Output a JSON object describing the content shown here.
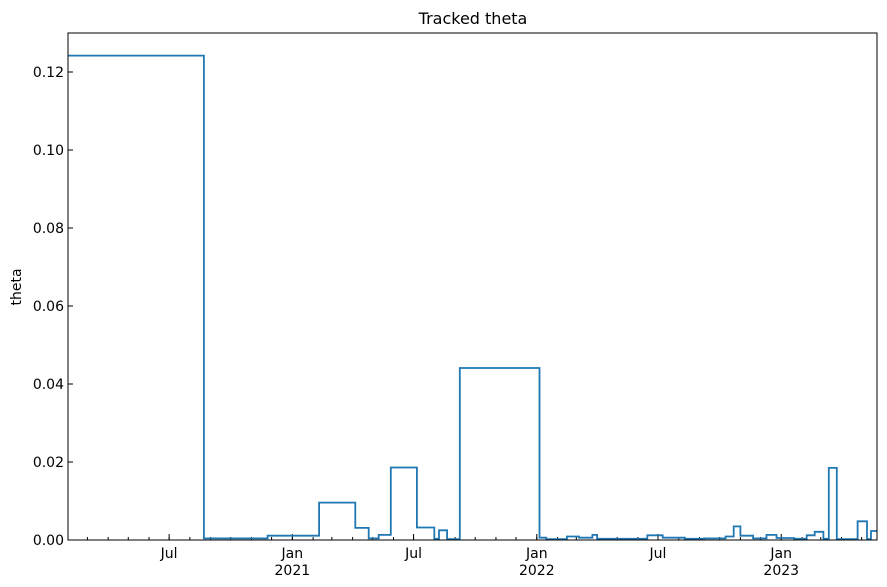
{
  "chart_data": {
    "type": "line",
    "title": "Tracked theta",
    "xlabel": "",
    "ylabel": "theta",
    "xlim": [
      "2020-02-01",
      "2023-05-24"
    ],
    "ylim": [
      0,
      0.13
    ],
    "y_ticks": [
      0.0,
      0.02,
      0.04,
      0.06,
      0.08,
      0.1,
      0.12
    ],
    "y_tick_labels": [
      "0.00",
      "0.02",
      "0.04",
      "0.06",
      "0.08",
      "0.10",
      "0.12"
    ],
    "x_major_ticks": [
      {
        "date": "2020-07-01",
        "label": "Jul",
        "sublabel": ""
      },
      {
        "date": "2021-01-01",
        "label": "Jan",
        "sublabel": "2021"
      },
      {
        "date": "2021-07-01",
        "label": "Jul",
        "sublabel": ""
      },
      {
        "date": "2022-01-01",
        "label": "Jan",
        "sublabel": "2022"
      },
      {
        "date": "2022-07-01",
        "label": "Jul",
        "sublabel": ""
      },
      {
        "date": "2023-01-01",
        "label": "Jan",
        "sublabel": "2023"
      }
    ],
    "grid": false,
    "series": [
      {
        "color": "#1f77b4",
        "step": "post",
        "points": [
          {
            "x": "2020-02-01",
            "y": 0.1242
          },
          {
            "x": "2020-08-22",
            "y": 0.0004
          },
          {
            "x": "2020-11-25",
            "y": 0.0011
          },
          {
            "x": "2021-02-10",
            "y": 0.0096
          },
          {
            "x": "2021-04-05",
            "y": 0.0031
          },
          {
            "x": "2021-04-25",
            "y": 0.0004
          },
          {
            "x": "2021-05-10",
            "y": 0.0013
          },
          {
            "x": "2021-05-28",
            "y": 0.0186
          },
          {
            "x": "2021-07-06",
            "y": 0.0032
          },
          {
            "x": "2021-08-01",
            "y": 0.0003
          },
          {
            "x": "2021-08-08",
            "y": 0.0025
          },
          {
            "x": "2021-08-20",
            "y": 0.0002
          },
          {
            "x": "2021-09-08",
            "y": 0.0441
          },
          {
            "x": "2022-01-05",
            "y": 0.0006
          },
          {
            "x": "2022-01-15",
            "y": 0.0002
          },
          {
            "x": "2022-02-15",
            "y": 0.0009
          },
          {
            "x": "2022-03-05",
            "y": 0.0006
          },
          {
            "x": "2022-03-25",
            "y": 0.0013
          },
          {
            "x": "2022-04-01",
            "y": 0.0003
          },
          {
            "x": "2022-06-15",
            "y": 0.0012
          },
          {
            "x": "2022-07-08",
            "y": 0.0006
          },
          {
            "x": "2022-08-10",
            "y": 0.0003
          },
          {
            "x": "2022-09-08",
            "y": 0.0004
          },
          {
            "x": "2022-10-10",
            "y": 0.0009
          },
          {
            "x": "2022-10-22",
            "y": 0.0035
          },
          {
            "x": "2022-11-01",
            "y": 0.0011
          },
          {
            "x": "2022-11-20",
            "y": 0.0004
          },
          {
            "x": "2022-12-10",
            "y": 0.0013
          },
          {
            "x": "2022-12-25",
            "y": 0.0005
          },
          {
            "x": "2023-01-20",
            "y": 0.0003
          },
          {
            "x": "2023-02-08",
            "y": 0.0012
          },
          {
            "x": "2023-02-20",
            "y": 0.0021
          },
          {
            "x": "2023-03-05",
            "y": 0.0003
          },
          {
            "x": "2023-03-13",
            "y": 0.0185
          },
          {
            "x": "2023-03-25",
            "y": 0.0002
          },
          {
            "x": "2023-04-25",
            "y": 0.0048
          },
          {
            "x": "2023-05-09",
            "y": 0.0002
          },
          {
            "x": "2023-05-15",
            "y": 0.0023
          },
          {
            "x": "2023-05-24",
            "y": 0.0023
          }
        ]
      }
    ]
  }
}
